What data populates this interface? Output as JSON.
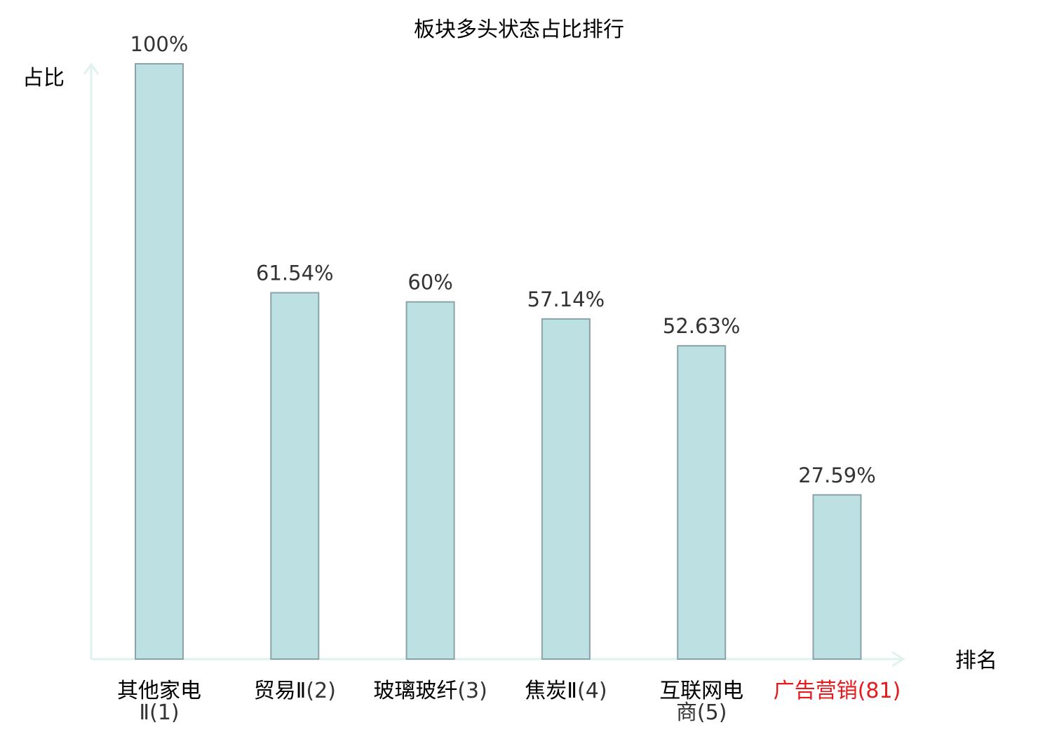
{
  "chart_data": {
    "type": "bar",
    "title": "板块多头状态占比排行",
    "xlabel": "排名",
    "ylabel": "占比",
    "ylim": [
      0,
      100
    ],
    "grid": false,
    "categories": [
      {
        "name": "其他家电",
        "rank": "Ⅱ(1)",
        "highlight": false
      },
      {
        "name": "贸易Ⅱ",
        "rank": "(2)",
        "highlight": false
      },
      {
        "name": "玻璃玻纤",
        "rank": "(3)",
        "highlight": false
      },
      {
        "name": "焦炭Ⅱ",
        "rank": "(4)",
        "highlight": false
      },
      {
        "name": "互联网电",
        "rank": "商(5)",
        "highlight": false
      },
      {
        "name": "广告营销",
        "rank": "(81)",
        "highlight": true
      }
    ],
    "values": [
      100,
      61.54,
      60,
      57.14,
      52.63,
      27.59
    ],
    "value_labels": [
      "100%",
      "61.54%",
      "60%",
      "57.14%",
      "52.63%",
      "27.59%"
    ],
    "colors": {
      "bar_fill": "#bde0e3",
      "bar_stroke": "#8aa3a8",
      "axis": "#dff2ef",
      "text": "#000000",
      "value_text": "#333333",
      "rank_text": "#333333",
      "highlight": "#e8191c"
    }
  }
}
